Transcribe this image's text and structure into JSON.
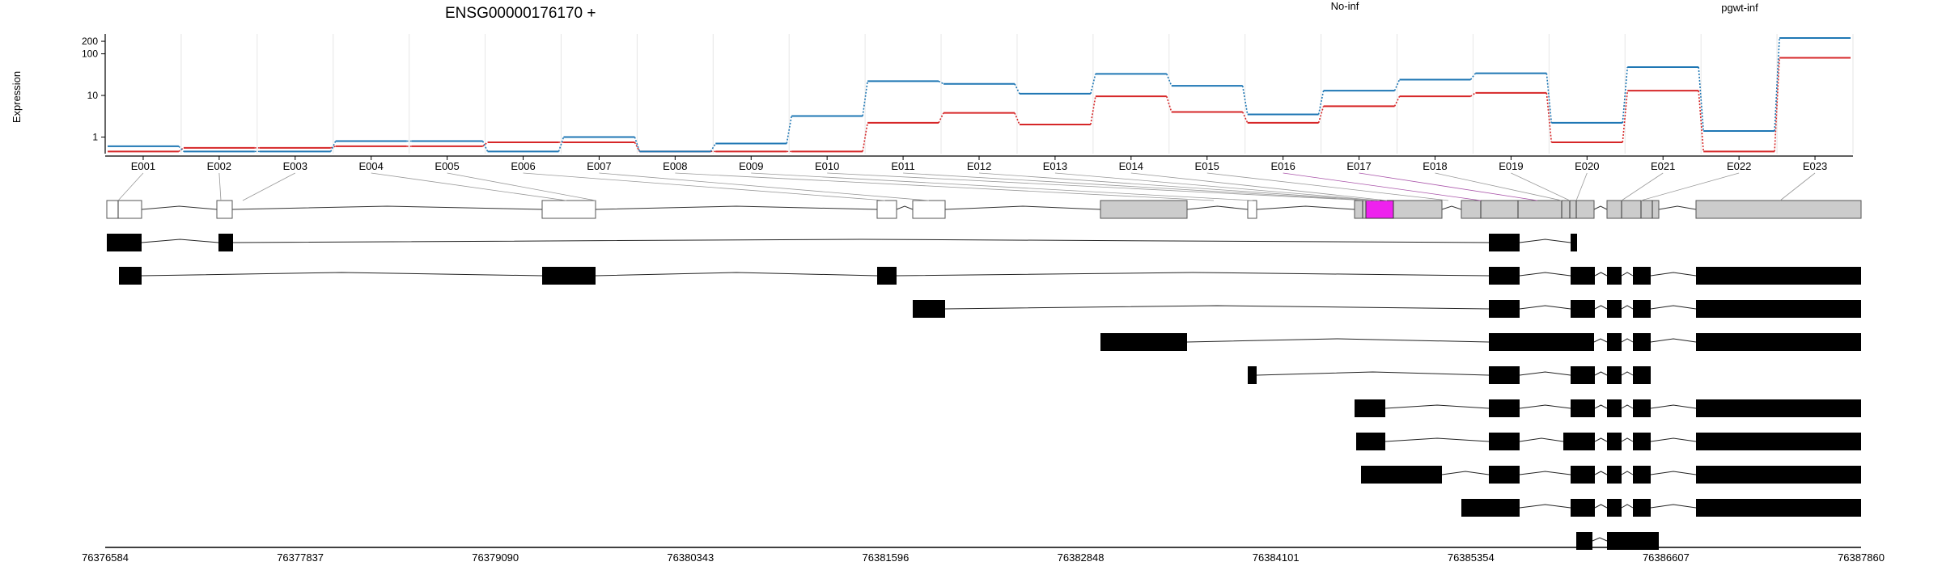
{
  "chart_data": {
    "type": "line",
    "title": "ENSG00000176170 +",
    "ylabel": "Expression",
    "y_scale": "log",
    "y_ticks": [
      "200",
      "100",
      "10",
      "1"
    ],
    "ylim": [
      0.4,
      300
    ],
    "grid": true,
    "legend": [
      {
        "name": "No-inf",
        "color": "#d62728",
        "placement": "top-center"
      },
      {
        "name": "pgwt-inf",
        "color": "#1f77b4",
        "placement": "top-right"
      }
    ],
    "categories": [
      "E001",
      "E002",
      "E003",
      "E004",
      "E005",
      "E006",
      "E007",
      "E008",
      "E009",
      "E010",
      "E011",
      "E012",
      "E013",
      "E014",
      "E015",
      "E016",
      "E017",
      "E018",
      "E019",
      "E020",
      "E021",
      "E022",
      "E023"
    ],
    "series": [
      {
        "name": "No-inf",
        "color": "#d62728",
        "values": [
          0.45,
          0.55,
          0.55,
          0.6,
          0.6,
          0.75,
          0.75,
          0.45,
          0.45,
          0.45,
          2.2,
          3.8,
          2.0,
          9.5,
          4.0,
          2.2,
          5.5,
          9.5,
          11.5,
          0.75,
          13.0,
          0.45,
          80
        ]
      },
      {
        "name": "pgwt-inf",
        "color": "#1f77b4",
        "values": [
          0.6,
          0.45,
          0.45,
          0.8,
          0.8,
          0.45,
          1.0,
          0.45,
          0.7,
          3.2,
          22,
          19,
          11,
          33,
          17,
          3.5,
          13,
          24,
          34,
          2.2,
          48,
          1.4,
          240
        ]
      }
    ],
    "genomic_ticks": [
      "76376584",
      "76377837",
      "76379090",
      "76380343",
      "76381596",
      "76382848",
      "76384101",
      "76385354",
      "76386607",
      "76387860"
    ],
    "gene_model": {
      "fill_color": "#cccccc",
      "highlight_color": "#ee22ee",
      "highlight_exon": "E017"
    },
    "transcript_count": 11
  }
}
